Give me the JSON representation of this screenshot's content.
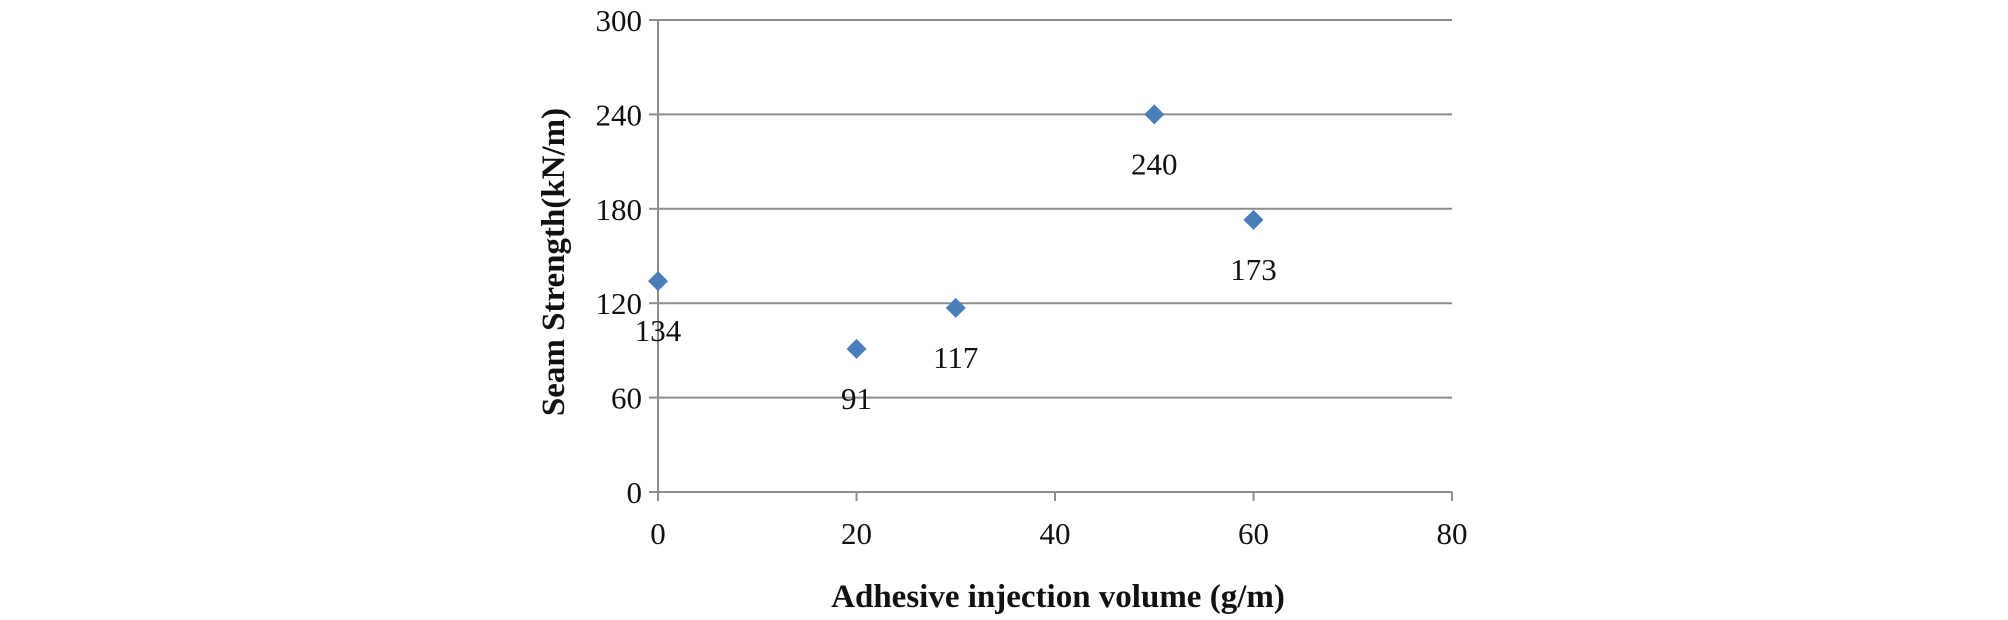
{
  "chart_data": {
    "type": "scatter",
    "title": "",
    "xlabel": "Adhesive injection volume (g/m)",
    "ylabel": "Seam Strength(kN/m)",
    "xlim": [
      0,
      80
    ],
    "ylim": [
      0,
      300
    ],
    "x_ticks": [
      "0",
      "20",
      "40",
      "60",
      "80"
    ],
    "y_ticks": [
      "0",
      "60",
      "120",
      "180",
      "240",
      "300"
    ],
    "x_tick_values": [
      0,
      20,
      40,
      60,
      80
    ],
    "y_tick_values": [
      0,
      60,
      120,
      180,
      240,
      300
    ],
    "grid": "horizontal",
    "legend": "none",
    "marker": "diamond",
    "marker_color": "#4a7ebb",
    "series": [
      {
        "x": [
          0,
          20,
          30,
          50,
          60
        ],
        "y": [
          134,
          91,
          117,
          240,
          173
        ],
        "labels": [
          "134",
          "91",
          "117",
          "240",
          "173"
        ]
      }
    ]
  }
}
